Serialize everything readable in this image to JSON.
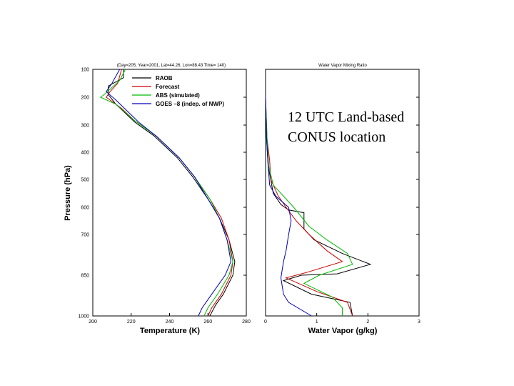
{
  "annotation": {
    "line1": "12 UTC Land-based",
    "line2": "CONUS location"
  },
  "chart_data": [
    {
      "type": "line",
      "title": "(Day=205, Year=2001, Lat=44.26, Lon=88.43 Time= 140)",
      "xlabel": "Temperature (K)",
      "ylabel": "Pressure (hPa)",
      "xlim": [
        200,
        280
      ],
      "ylim": [
        1000,
        100
      ],
      "x_ticks": [
        "200",
        "220",
        "240",
        "260",
        "280"
      ],
      "y_ticks": [
        "100",
        "200",
        "300",
        "400",
        "500",
        "600",
        "700",
        "850",
        "1000"
      ],
      "legend_position": "top-right",
      "series": [
        {
          "name": "RAOB",
          "color": "#000000",
          "points": [
            [
              216,
              100
            ],
            [
              216,
              130
            ],
            [
              208,
              160
            ],
            [
              208,
              190
            ],
            [
              212,
              225
            ],
            [
              222,
              290
            ],
            [
              232,
              340
            ],
            [
              244,
              420
            ],
            [
              252,
              490
            ],
            [
              260,
              570
            ],
            [
              266,
              640
            ],
            [
              271,
              720
            ],
            [
              274,
              800
            ],
            [
              273,
              850
            ],
            [
              268,
              920
            ],
            [
              264,
              960
            ],
            [
              261,
              1000
            ]
          ]
        },
        {
          "name": "Forecast",
          "color": "#cc0000",
          "points": [
            [
              215,
              100
            ],
            [
              213,
              150
            ],
            [
              209,
              180
            ],
            [
              207,
              200
            ],
            [
              215,
              240
            ],
            [
              222,
              285
            ],
            [
              233,
              340
            ],
            [
              245,
              420
            ],
            [
              253,
              490
            ],
            [
              261,
              570
            ],
            [
              267,
              640
            ],
            [
              271,
              720
            ],
            [
              273,
              800
            ],
            [
              272,
              850
            ],
            [
              267,
              920
            ],
            [
              262,
              970
            ],
            [
              260,
              1000
            ]
          ]
        },
        {
          "name": "ABS (simulated)",
          "color": "#00bb00",
          "points": [
            [
              217,
              100
            ],
            [
              214,
              140
            ],
            [
              206,
              190
            ],
            [
              204,
              200
            ],
            [
              212,
              225
            ],
            [
              222,
              285
            ],
            [
              233,
              340
            ],
            [
              245,
              420
            ],
            [
              253,
              490
            ],
            [
              261,
              570
            ],
            [
              266,
              640
            ],
            [
              270,
              720
            ],
            [
              273,
              800
            ],
            [
              271,
              850
            ],
            [
              265,
              920
            ],
            [
              260,
              970
            ],
            [
              258,
              1000
            ]
          ]
        },
        {
          "name": "GOES –8 (indep. of NWP)",
          "color": "#0000bb",
          "points": [
            [
              214,
              100
            ],
            [
              210,
              150
            ],
            [
              207,
              180
            ],
            [
              212,
              210
            ],
            [
              218,
              250
            ],
            [
              224,
              290
            ],
            [
              233,
              340
            ],
            [
              245,
              420
            ],
            [
              253,
              490
            ],
            [
              260,
              570
            ],
            [
              266,
              640
            ],
            [
              270,
              720
            ],
            [
              272,
              800
            ],
            [
              269,
              850
            ],
            [
              262,
              920
            ],
            [
              257,
              970
            ],
            [
              255,
              1000
            ]
          ]
        }
      ]
    },
    {
      "type": "line",
      "title": "Water Vapor Mixing Ratio",
      "xlabel": "Water Vapor (g/kg)",
      "ylabel": "",
      "xlim": [
        0,
        3
      ],
      "ylim": [
        1000,
        100
      ],
      "x_ticks": [
        "0",
        "1",
        "2",
        "3"
      ],
      "series": [
        {
          "name": "RAOB",
          "color": "#000000",
          "points": [
            [
              0,
              200
            ],
            [
              0.02,
              350
            ],
            [
              0.05,
              450
            ],
            [
              0.15,
              550
            ],
            [
              0.3,
              590
            ],
            [
              0.45,
              610
            ],
            [
              0.75,
              620
            ],
            [
              0.75,
              680
            ],
            [
              0.95,
              720
            ],
            [
              1.5,
              770
            ],
            [
              2.05,
              810
            ],
            [
              1.4,
              845
            ],
            [
              0.7,
              850
            ],
            [
              0.35,
              870
            ],
            [
              0.9,
              920
            ],
            [
              1.65,
              950
            ],
            [
              1.7,
              1000
            ]
          ]
        },
        {
          "name": "Forecast",
          "color": "#cc0000",
          "points": [
            [
              0,
              200
            ],
            [
              0.03,
              350
            ],
            [
              0.08,
              430
            ],
            [
              0.1,
              500
            ],
            [
              0.25,
              560
            ],
            [
              0.4,
              600
            ],
            [
              0.6,
              650
            ],
            [
              0.85,
              700
            ],
            [
              1.2,
              760
            ],
            [
              1.5,
              800
            ],
            [
              0.8,
              840
            ],
            [
              0.4,
              860
            ],
            [
              1.0,
              910
            ],
            [
              1.6,
              950
            ],
            [
              1.7,
              1000
            ]
          ]
        },
        {
          "name": "ABS (simulated)",
          "color": "#00bb00",
          "points": [
            [
              0,
              200
            ],
            [
              0.03,
              350
            ],
            [
              0.06,
              450
            ],
            [
              0.15,
              520
            ],
            [
              0.35,
              560
            ],
            [
              0.55,
              600
            ],
            [
              0.85,
              670
            ],
            [
              1.2,
              720
            ],
            [
              1.6,
              770
            ],
            [
              1.7,
              810
            ],
            [
              1.05,
              850
            ],
            [
              0.75,
              880
            ],
            [
              1.3,
              930
            ],
            [
              1.5,
              970
            ],
            [
              1.5,
              1000
            ]
          ]
        },
        {
          "name": "GOES –8 (indep. of NWP)",
          "color": "#0000bb",
          "points": [
            [
              0,
              200
            ],
            [
              0.02,
              350
            ],
            [
              0.05,
              450
            ],
            [
              0.08,
              520
            ],
            [
              0.2,
              560
            ],
            [
              0.45,
              600
            ],
            [
              0.5,
              650
            ],
            [
              0.45,
              700
            ],
            [
              0.4,
              760
            ],
            [
              0.35,
              800
            ],
            [
              0.3,
              860
            ],
            [
              0.35,
              920
            ],
            [
              0.45,
              950
            ],
            [
              0.9,
              1000
            ]
          ]
        }
      ]
    }
  ]
}
